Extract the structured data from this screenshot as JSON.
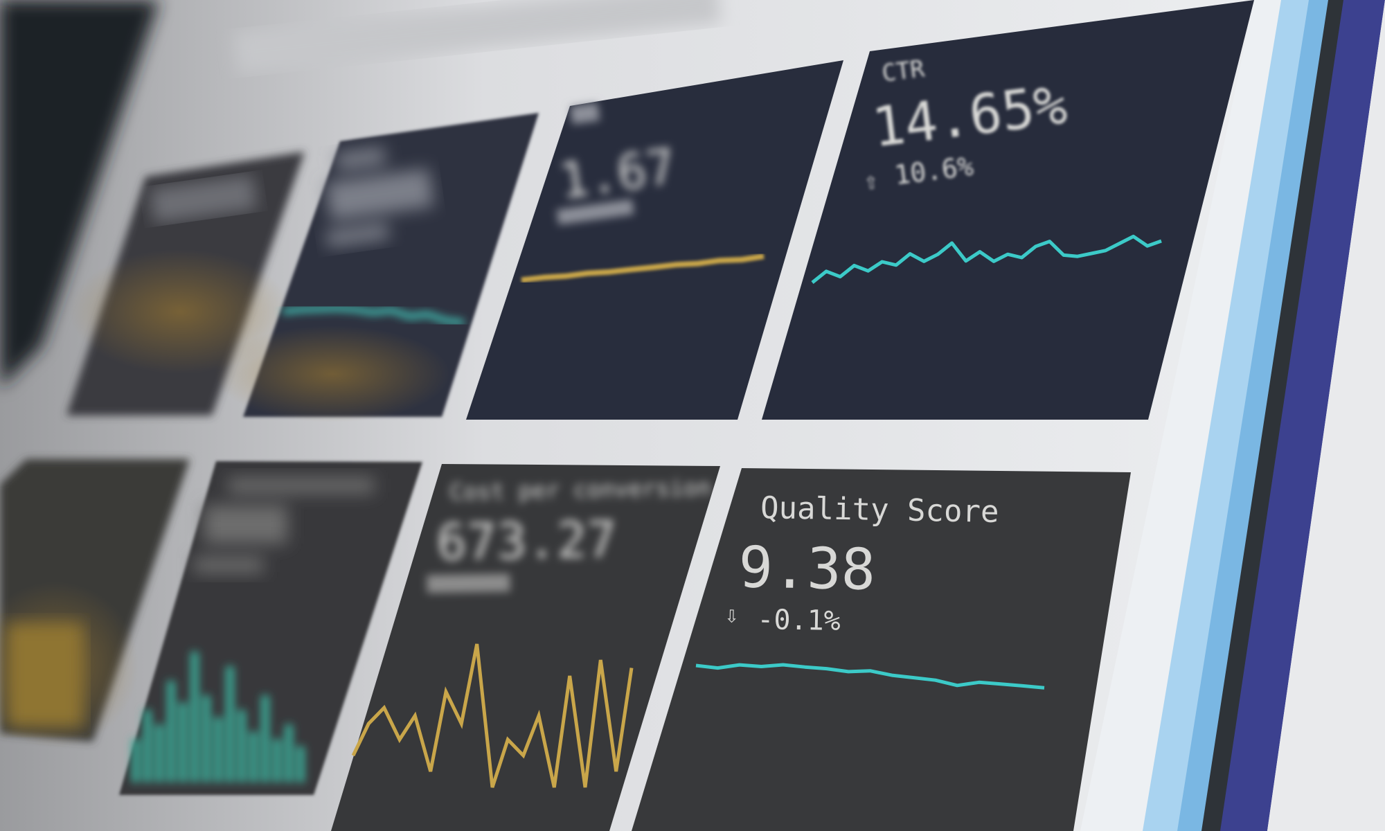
{
  "colors": {
    "screen_bg": "#e4e5e7",
    "card_top": "#272c3c",
    "card_bottom": "#37383b",
    "text": "#d8d8d6",
    "teal": "#3ccac8",
    "gold": "#c9a64a",
    "stripe_light_blue": "#a9d3f0",
    "stripe_blue": "#7ab7e3",
    "stripe_dark": "#2e3338",
    "stripe_indigo": "#3c418f"
  },
  "cards": {
    "ctr": {
      "label": "CTR",
      "value": "14.65%",
      "change": "10.6%",
      "trend_icon": "arrow-up-icon",
      "sparkline": [
        0.2,
        0.45,
        0.3,
        0.55,
        0.4,
        0.6,
        0.5,
        0.75,
        0.55,
        0.7,
        0.95,
        0.5,
        0.7,
        0.45,
        0.6,
        0.5,
        0.75,
        0.85,
        0.5,
        0.45,
        0.5,
        0.55,
        0.7,
        0.85,
        0.6,
        0.7
      ]
    },
    "cpc": {
      "value": "1.67",
      "sparkline": [
        0.3,
        0.35,
        0.33,
        0.4,
        0.38,
        0.42,
        0.45,
        0.5,
        0.47,
        0.55,
        0.5,
        0.6
      ]
    },
    "metric2": {
      "sparkline": [
        0.5,
        0.6,
        0.65,
        0.7,
        0.68,
        0.6,
        0.7,
        0.5,
        0.6,
        0.4,
        0.35
      ]
    },
    "cost_per_conversion": {
      "label": "Cost per conversion",
      "value": "673.27",
      "sparkline": [
        0.3,
        0.5,
        0.6,
        0.4,
        0.55,
        0.2,
        0.7,
        0.5,
        1.0,
        0.1,
        0.4,
        0.3,
        0.55,
        0.1,
        0.8,
        0.1,
        0.9,
        0.2,
        0.85
      ]
    },
    "quality_score": {
      "label": "Quality Score",
      "value": "9.38",
      "change": "-0.1%",
      "trend_icon": "arrow-down-icon",
      "sparkline": [
        0.6,
        0.55,
        0.7,
        0.68,
        0.78,
        0.74,
        0.72,
        0.65,
        0.72,
        0.6,
        0.55,
        0.5,
        0.35,
        0.5,
        0.48,
        0.45,
        0.42
      ]
    },
    "bars_card": {
      "bars": [
        0.3,
        0.5,
        0.4,
        0.7,
        0.55,
        0.9,
        0.6,
        0.45,
        0.8,
        0.5,
        0.35,
        0.6,
        0.3,
        0.4,
        0.25
      ]
    }
  }
}
